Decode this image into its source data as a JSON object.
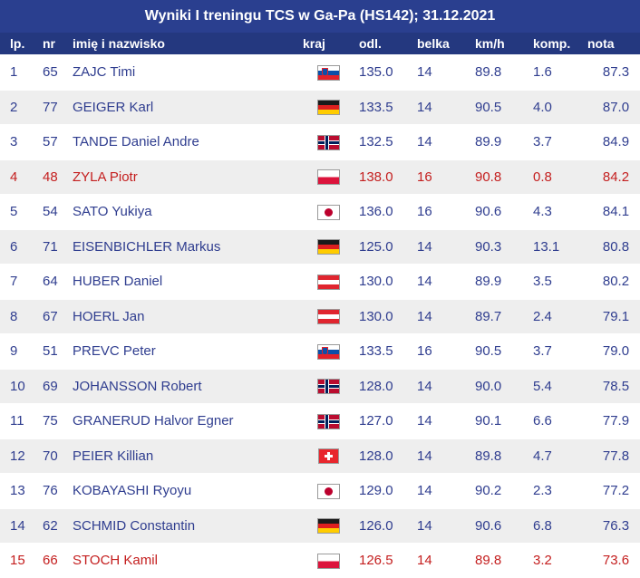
{
  "title": "Wyniki I treningu TCS w Ga-Pa (HS142); 31.12.2021",
  "columns": {
    "lp": "lp.",
    "nr": "nr",
    "name": "imię i nazwisko",
    "kraj": "kraj",
    "odl": "odl.",
    "belka": "belka",
    "kmh": "km/h",
    "komp": "komp.",
    "nota": "nota"
  },
  "rows": [
    {
      "lp": "1",
      "nr": "65",
      "name": "ZAJC Timi",
      "flag": "slo",
      "odl": "135.0",
      "belka": "14",
      "kmh": "89.8",
      "komp": "1.6",
      "nota": "87.3"
    },
    {
      "lp": "2",
      "nr": "77",
      "name": "GEIGER Karl",
      "flag": "ger",
      "odl": "133.5",
      "belka": "14",
      "kmh": "90.5",
      "komp": "4.0",
      "nota": "87.0"
    },
    {
      "lp": "3",
      "nr": "57",
      "name": "TANDE Daniel Andre",
      "flag": "nor",
      "odl": "132.5",
      "belka": "14",
      "kmh": "89.9",
      "komp": "3.7",
      "nota": "84.9"
    },
    {
      "lp": "4",
      "nr": "48",
      "name": "ZYLA Piotr",
      "flag": "pol",
      "odl": "138.0",
      "belka": "16",
      "kmh": "90.8",
      "komp": "0.8",
      "nota": "84.2",
      "highlight": "#c41e1e"
    },
    {
      "lp": "5",
      "nr": "54",
      "name": "SATO Yukiya",
      "flag": "jpn",
      "odl": "136.0",
      "belka": "16",
      "kmh": "90.6",
      "komp": "4.3",
      "nota": "84.1"
    },
    {
      "lp": "6",
      "nr": "71",
      "name": "EISENBICHLER Markus",
      "flag": "ger",
      "odl": "125.0",
      "belka": "14",
      "kmh": "90.3",
      "komp": "13.1",
      "nota": "80.8"
    },
    {
      "lp": "7",
      "nr": "64",
      "name": "HUBER Daniel",
      "flag": "aut",
      "odl": "130.0",
      "belka": "14",
      "kmh": "89.9",
      "komp": "3.5",
      "nota": "80.2"
    },
    {
      "lp": "8",
      "nr": "67",
      "name": "HOERL Jan",
      "flag": "aut",
      "odl": "130.0",
      "belka": "14",
      "kmh": "89.7",
      "komp": "2.4",
      "nota": "79.1"
    },
    {
      "lp": "9",
      "nr": "51",
      "name": "PREVC Peter",
      "flag": "slo",
      "odl": "133.5",
      "belka": "16",
      "kmh": "90.5",
      "komp": "3.7",
      "nota": "79.0"
    },
    {
      "lp": "10",
      "nr": "69",
      "name": "JOHANSSON Robert",
      "flag": "nor",
      "odl": "128.0",
      "belka": "14",
      "kmh": "90.0",
      "komp": "5.4",
      "nota": "78.5"
    },
    {
      "lp": "11",
      "nr": "75",
      "name": "GRANERUD Halvor Egner",
      "flag": "nor",
      "odl": "127.0",
      "belka": "14",
      "kmh": "90.1",
      "komp": "6.6",
      "nota": "77.9"
    },
    {
      "lp": "12",
      "nr": "70",
      "name": "PEIER Killian",
      "flag": "sui",
      "odl": "128.0",
      "belka": "14",
      "kmh": "89.8",
      "komp": "4.7",
      "nota": "77.8"
    },
    {
      "lp": "13",
      "nr": "76",
      "name": "KOBAYASHI Ryoyu",
      "flag": "jpn",
      "odl": "129.0",
      "belka": "14",
      "kmh": "90.2",
      "komp": "2.3",
      "nota": "77.2"
    },
    {
      "lp": "14",
      "nr": "62",
      "name": "SCHMID Constantin",
      "flag": "ger",
      "odl": "126.0",
      "belka": "14",
      "kmh": "90.6",
      "komp": "6.8",
      "nota": "76.3"
    },
    {
      "lp": "15",
      "nr": "66",
      "name": "STOCH Kamil",
      "flag": "pol",
      "odl": "126.5",
      "belka": "14",
      "kmh": "89.8",
      "komp": "3.2",
      "nota": "73.6",
      "highlight": "#c41e1e"
    }
  ],
  "colors": {
    "title_bg": "#2a3f8f",
    "header_bg": "#24387f",
    "text": "#2f3d8f",
    "highlight": "#c41e1e",
    "stripe": "#eeeeee"
  }
}
